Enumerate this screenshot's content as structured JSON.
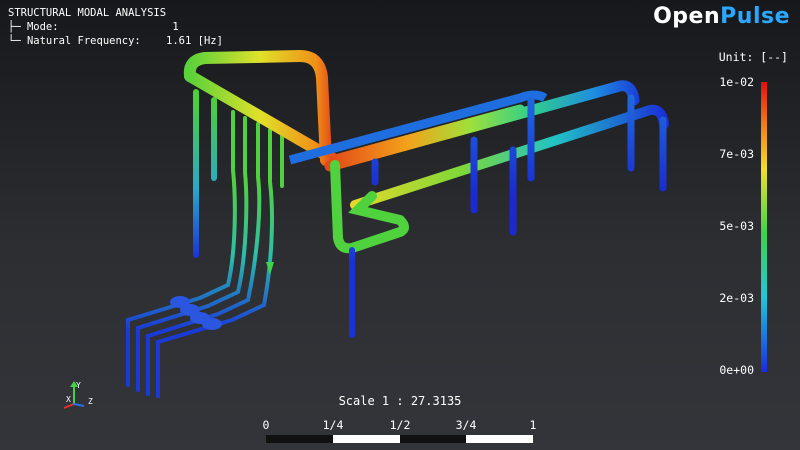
{
  "analysis": {
    "title": "STRUCTURAL MODAL ANALYSIS",
    "mode_row": "├─ Mode:                  1",
    "freq_row": "└─ Natural Frequency:    1.61 [Hz]"
  },
  "brand": {
    "part1": "Open",
    "part2": "Pulse"
  },
  "colorbar": {
    "unit_label": "Unit: [--]",
    "ticks": [
      "1e-02",
      "7e-03",
      "5e-03",
      "2e-03",
      "0e+00"
    ],
    "colors": [
      "#e01010",
      "#f2e02a",
      "#3fd24a",
      "#21c8d8",
      "#1a2ce0"
    ]
  },
  "scale_bar": {
    "scale_text": "Scale 1 : 27.3135",
    "labels": [
      "0",
      "1/4",
      "1/2",
      "3/4",
      "1"
    ]
  },
  "axes": {
    "x": "X",
    "y": "Y",
    "z": "Z"
  },
  "icons": {
    "axes": "axes-triad-icon"
  }
}
